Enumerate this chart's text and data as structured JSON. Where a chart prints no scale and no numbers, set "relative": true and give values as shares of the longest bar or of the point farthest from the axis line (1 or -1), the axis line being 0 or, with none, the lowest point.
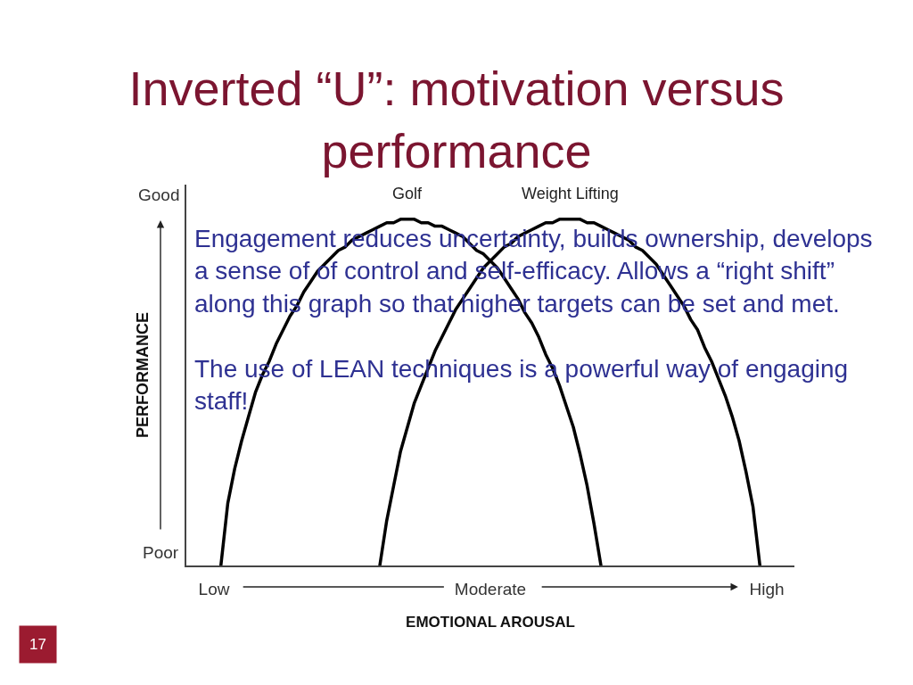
{
  "chart_data": {
    "type": "line",
    "title": "Inverted “U”: motivation versus\nperformance",
    "xlabel": "EMOTIONAL AROUSAL",
    "ylabel": "PERFORMANCE",
    "relative": true,
    "categories": [
      null,
      null,
      null,
      null,
      "Low",
      null,
      null,
      null,
      null,
      null,
      null,
      null,
      null,
      null,
      null,
      null,
      null,
      null,
      null,
      null,
      null,
      null,
      null,
      null,
      null,
      null,
      null,
      null,
      null,
      null,
      null,
      null,
      null,
      null,
      null,
      null,
      null,
      null,
      null,
      null,
      null,
      null,
      null,
      null,
      "Moderate",
      null,
      null,
      null,
      null,
      null,
      null,
      null,
      null,
      null,
      null,
      null,
      null,
      null,
      null,
      null,
      null,
      null,
      null,
      null,
      null,
      null,
      null,
      null,
      null,
      null,
      null,
      null,
      null,
      null,
      null,
      null,
      null,
      null,
      null,
      null,
      null,
      null,
      null,
      null,
      "High",
      null,
      null,
      null,
      null
    ],
    "series": [
      {
        "name": "Golf",
        "color": "#000000",
        "values": [
          null,
          null,
          null,
          null,
          null,
          0,
          0.18,
          0.28,
          0.36,
          0.43,
          0.5,
          0.55,
          0.59,
          0.64,
          0.68,
          0.72,
          0.75,
          0.79,
          0.82,
          0.85,
          0.87,
          0.89,
          0.91,
          0.92,
          0.94,
          0.95,
          0.96,
          0.97,
          0.98,
          0.99,
          0.99,
          1.0,
          1.0,
          1.0,
          0.99,
          0.99,
          0.98,
          0.98,
          0.97,
          0.96,
          0.95,
          0.93,
          0.91,
          0.9,
          0.88,
          0.86,
          0.83,
          0.8,
          0.77,
          0.73,
          0.7,
          0.66,
          0.61,
          0.57,
          0.52,
          0.46,
          0.4,
          0.32,
          0.23,
          0.12,
          0,
          null,
          null,
          null,
          null,
          null,
          null,
          null,
          null,
          null,
          null,
          null,
          null,
          null,
          null,
          null,
          null,
          null,
          null,
          null,
          null,
          null,
          null,
          null,
          null,
          null,
          null,
          null,
          null
        ]
      },
      {
        "name": "Weight Lifting",
        "color": "#000000",
        "values": [
          null,
          null,
          null,
          null,
          null,
          null,
          null,
          null,
          null,
          null,
          null,
          null,
          null,
          null,
          null,
          null,
          null,
          null,
          null,
          null,
          null,
          null,
          null,
          null,
          null,
          null,
          null,
          null,
          0,
          0.13,
          0.23,
          0.33,
          0.4,
          0.47,
          0.52,
          0.57,
          0.62,
          0.66,
          0.7,
          0.74,
          0.77,
          0.8,
          0.83,
          0.86,
          0.88,
          0.9,
          0.92,
          0.93,
          0.95,
          0.96,
          0.97,
          0.98,
          0.99,
          0.99,
          1.0,
          1.0,
          1.0,
          1.0,
          0.99,
          0.99,
          0.98,
          0.97,
          0.96,
          0.95,
          0.94,
          0.92,
          0.91,
          0.89,
          0.87,
          0.84,
          0.81,
          0.78,
          0.75,
          0.71,
          0.68,
          0.63,
          0.59,
          0.54,
          0.49,
          0.43,
          0.36,
          0.27,
          0.17,
          0,
          null,
          null,
          null,
          null,
          null
        ]
      }
    ],
    "annotations": [
      "Good",
      "Poor",
      "Engagement reduces uncertainty, builds ownership, develops\na sense of of control and self-efficacy. Allows a “right shift”\nalong this graph so that higher targets can be set and met.\n\nThe use of LEAN techniques is a powerful way of engaging\nstaff!",
      "17"
    ],
    "legend": false,
    "grid": false,
    "marker": "none",
    "line_style": "solid"
  }
}
